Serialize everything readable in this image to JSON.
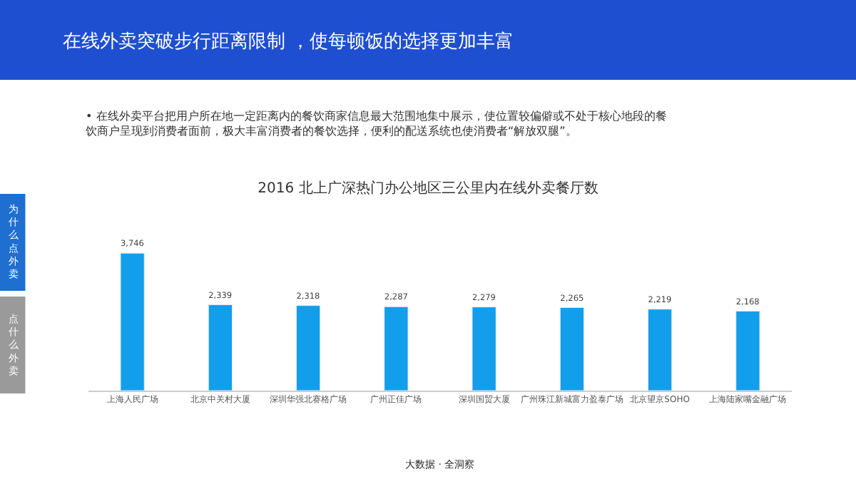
{
  "chart_data": {
    "type": "bar",
    "title": "2016 北上广深热门办公地区三公里内在线外卖餐厅数",
    "subtitle": "在线外卖突破步行距离限制 ，使每顿饭的选择更加丰富",
    "annotations": [
      "• 在线外卖平台把用户所在地一定距离内的餐饮商家信息最大范围地集中展示，使位置较偏僻或不处于核心地段的餐饮商户呈现到消费者面前，极大丰富消费者的餐饮选择，便利的配送系统也使消费者“解放双腿”。",
      "大数据 · 全洞察",
      "为什么点外卖",
      "点什么外卖"
    ],
    "categories": [
      "上海人民广场",
      "北京中关村大厦",
      "深圳华强北赛格广场",
      "广州正佳广场",
      "深圳国贸大厦",
      "广州珠江新城富力盈泰广场",
      "北京望京SOHO",
      "上海陆家嘴金融广场"
    ],
    "values": [
      3746,
      2339,
      2318,
      2287,
      2279,
      2265,
      2219,
      2168
    ],
    "value_labels": [
      "3,746",
      "2,339",
      "2,318",
      "2,287",
      "2,279",
      "2,265",
      "2,219",
      "2,168"
    ],
    "color": "#129eea",
    "legend": false
  }
}
